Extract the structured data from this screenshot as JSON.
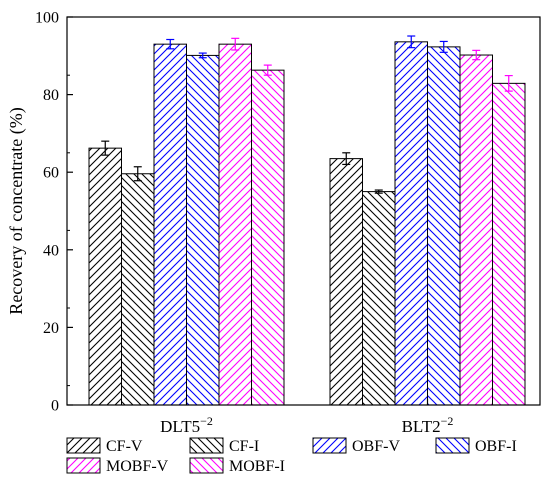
{
  "chart_data": {
    "type": "bar",
    "ylabel": "Recovery of concentrate (%)",
    "ylim": [
      0,
      100
    ],
    "yticks": [
      0,
      20,
      40,
      60,
      80,
      100
    ],
    "categories": [
      "DLT5−2",
      "BLT2−2"
    ],
    "category_labels": [
      {
        "base": "DLT5",
        "sup": "−2"
      },
      {
        "base": "BLT2",
        "sup": "−2"
      }
    ],
    "series": [
      {
        "name": "CF-V",
        "values": [
          66.2,
          63.5
        ],
        "errors": [
          1.8,
          1.5
        ],
        "color": "#000000",
        "hatch": "forward"
      },
      {
        "name": "CF-I",
        "values": [
          59.6,
          55.0
        ],
        "errors": [
          1.8,
          0.4
        ],
        "color": "#000000",
        "hatch": "back"
      },
      {
        "name": "OBF-V",
        "values": [
          93.0,
          93.6
        ],
        "errors": [
          1.2,
          1.5
        ],
        "color": "#0000ff",
        "hatch": "forward"
      },
      {
        "name": "OBF-I",
        "values": [
          90.1,
          92.3
        ],
        "errors": [
          0.6,
          1.4
        ],
        "color": "#0000ff",
        "hatch": "back"
      },
      {
        "name": "MOBF-V",
        "values": [
          93.0,
          90.2
        ],
        "errors": [
          1.5,
          1.2
        ],
        "color": "#ff00ff",
        "hatch": "forward"
      },
      {
        "name": "MOBF-I",
        "values": [
          86.3,
          82.9
        ],
        "errors": [
          1.3,
          2.0
        ],
        "color": "#ff00ff",
        "hatch": "back"
      }
    ],
    "legend_position": "bottom",
    "grid": false
  }
}
